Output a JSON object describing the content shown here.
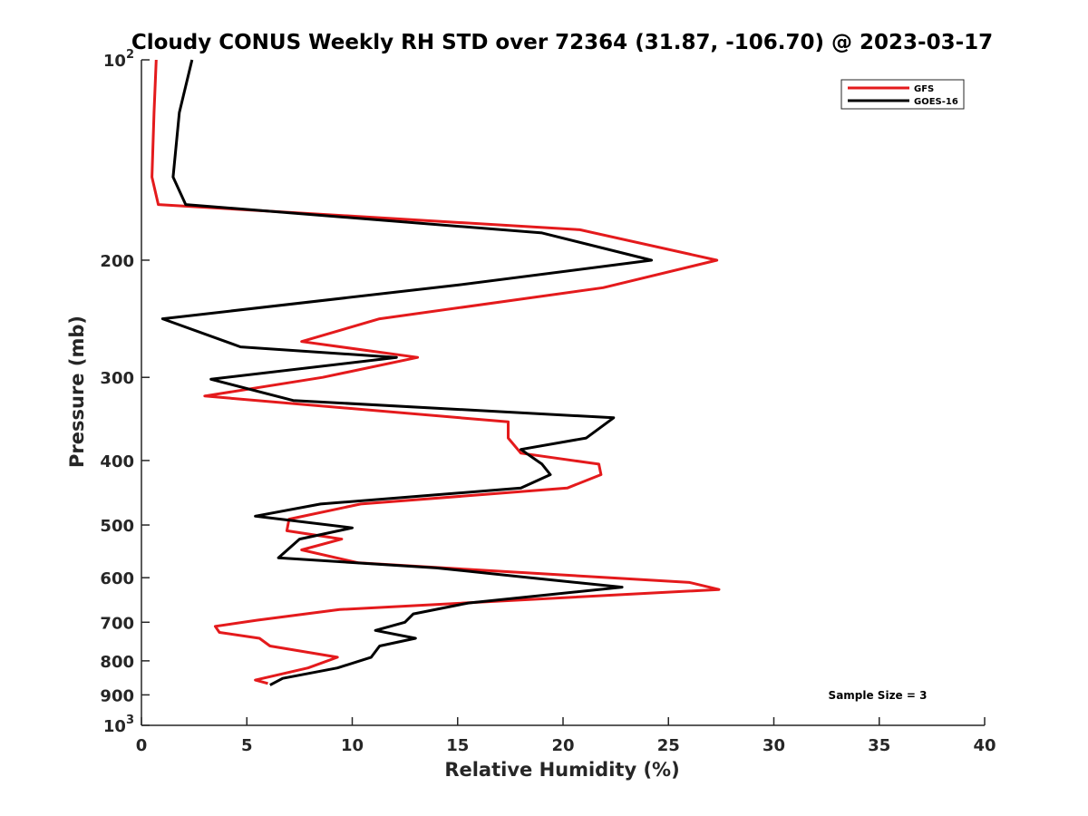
{
  "chart_data": {
    "type": "line",
    "title": "Cloudy CONUS Weekly RH STD over 72364 (31.87, -106.70) @ 2023-03-17",
    "xlabel": "Relative Humidity (%)",
    "ylabel": "Pressure (mb)",
    "xlim": [
      0,
      40
    ],
    "ylim": [
      100,
      1000
    ],
    "y_scale": "log",
    "y_reversed": true,
    "x_ticks": [
      "0",
      "5",
      "10",
      "15",
      "20",
      "25",
      "30",
      "35",
      "40"
    ],
    "y_tick_values": [
      100,
      200,
      300,
      400,
      500,
      600,
      700,
      800,
      900,
      1000
    ],
    "y_ticks": [
      {
        "base": "10",
        "exp": "2"
      },
      {
        "base": "200",
        "exp": ""
      },
      {
        "base": "300",
        "exp": ""
      },
      {
        "base": "400",
        "exp": ""
      },
      {
        "base": "500",
        "exp": ""
      },
      {
        "base": "600",
        "exp": ""
      },
      {
        "base": "700",
        "exp": ""
      },
      {
        "base": "800",
        "exp": ""
      },
      {
        "base": "900",
        "exp": ""
      },
      {
        "base": "10",
        "exp": "3"
      }
    ],
    "grid": false,
    "legend_position": "top-right",
    "annotation": "Sample Size = 3",
    "series": [
      {
        "name": "GFS",
        "color": "#e41a1c",
        "x": [
          0.7,
          0.6,
          0.5,
          0.8,
          20.8,
          27.3,
          21.9,
          11.3,
          7.6,
          13.1,
          8.6,
          3.0,
          17.4,
          17.4,
          18.0,
          21.7,
          21.8,
          20.2,
          10.4,
          7.0,
          6.9,
          9.5,
          7.6,
          10.3,
          26.0,
          27.4,
          9.4,
          5.5,
          3.5,
          3.7,
          5.6,
          6.1,
          9.3,
          7.9,
          5.4,
          6.0
        ],
        "y": [
          100,
          120,
          150,
          165,
          180,
          200,
          220,
          245,
          265,
          280,
          300,
          320,
          350,
          370,
          390,
          405,
          420,
          440,
          465,
          490,
          510,
          525,
          545,
          570,
          610,
          625,
          670,
          695,
          710,
          725,
          740,
          760,
          790,
          820,
          855,
          865
        ]
      },
      {
        "name": "GOES-16",
        "color": "#000000",
        "x": [
          2.4,
          1.8,
          1.5,
          2.1,
          19.0,
          24.2,
          15.0,
          1.0,
          4.7,
          12.1,
          3.3,
          7.2,
          22.4,
          21.1,
          18.0,
          19.0,
          19.4,
          18.0,
          8.5,
          5.4,
          10.0,
          7.5,
          6.5,
          14.0,
          19.5,
          22.8,
          15.5,
          12.9,
          12.5,
          11.1,
          13.0,
          11.3,
          10.9,
          9.3,
          6.7,
          6.1
        ],
        "y": [
          100,
          120,
          150,
          165,
          182,
          200,
          218,
          245,
          270,
          280,
          302,
          325,
          345,
          370,
          385,
          405,
          420,
          440,
          465,
          485,
          505,
          525,
          560,
          580,
          605,
          620,
          655,
          680,
          700,
          720,
          740,
          760,
          790,
          820,
          850,
          870
        ]
      }
    ]
  }
}
